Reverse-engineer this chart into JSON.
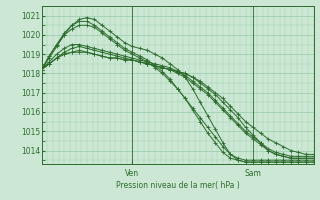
{
  "bg_color": "#cce8d4",
  "grid_color": "#99ccaa",
  "line_color": "#2d6b2d",
  "text_color": "#2d6b2d",
  "xlabel_text": "Pression niveau de la mer( hPa )",
  "ylim": [
    1013.3,
    1021.5
  ],
  "yticks": [
    1014,
    1015,
    1016,
    1017,
    1018,
    1019,
    1020,
    1021
  ],
  "n_points": 37,
  "ven_idx": 12,
  "sam_idx": 28,
  "series": [
    [
      1018.2,
      1018.5,
      1018.8,
      1019.0,
      1019.1,
      1019.2,
      1019.1,
      1019.0,
      1018.9,
      1018.8,
      1018.8,
      1018.7,
      1018.7,
      1018.6,
      1018.5,
      1018.4,
      1018.3,
      1018.2,
      1018.1,
      1018.0,
      1017.8,
      1017.5,
      1017.2,
      1016.9,
      1016.5,
      1016.1,
      1015.7,
      1015.2,
      1014.8,
      1014.4,
      1014.0,
      1013.8,
      1013.7,
      1013.6,
      1013.6,
      1013.6,
      1013.6
    ],
    [
      1018.2,
      1018.5,
      1018.8,
      1019.0,
      1019.1,
      1019.1,
      1019.1,
      1019.0,
      1018.9,
      1018.8,
      1018.8,
      1018.7,
      1018.7,
      1018.6,
      1018.5,
      1018.4,
      1018.3,
      1018.2,
      1018.1,
      1018.0,
      1017.8,
      1017.6,
      1017.3,
      1017.0,
      1016.7,
      1016.3,
      1015.9,
      1015.5,
      1015.2,
      1014.9,
      1014.6,
      1014.4,
      1014.2,
      1014.0,
      1013.9,
      1013.8,
      1013.8
    ],
    [
      1018.2,
      1018.5,
      1018.8,
      1019.1,
      1019.3,
      1019.4,
      1019.3,
      1019.2,
      1019.1,
      1019.0,
      1018.9,
      1018.8,
      1018.7,
      1018.6,
      1018.5,
      1018.4,
      1018.3,
      1018.2,
      1018.0,
      1017.8,
      1017.5,
      1017.2,
      1016.9,
      1016.5,
      1016.1,
      1015.7,
      1015.3,
      1014.9,
      1014.6,
      1014.3,
      1014.0,
      1013.8,
      1013.7,
      1013.6,
      1013.6,
      1013.6,
      1013.6
    ],
    [
      1018.2,
      1018.6,
      1019.0,
      1019.3,
      1019.5,
      1019.5,
      1019.4,
      1019.3,
      1019.2,
      1019.1,
      1019.0,
      1018.9,
      1018.8,
      1018.7,
      1018.6,
      1018.5,
      1018.4,
      1018.3,
      1018.1,
      1017.9,
      1017.6,
      1017.3,
      1017.0,
      1016.6,
      1016.2,
      1015.8,
      1015.4,
      1015.0,
      1014.7,
      1014.4,
      1014.1,
      1013.9,
      1013.8,
      1013.7,
      1013.7,
      1013.7,
      1013.7
    ],
    [
      1018.2,
      1018.9,
      1019.5,
      1020.0,
      1020.3,
      1020.5,
      1020.5,
      1020.4,
      1020.1,
      1019.8,
      1019.5,
      1019.2,
      1019.0,
      1018.8,
      1018.6,
      1018.3,
      1018.0,
      1017.6,
      1017.2,
      1016.7,
      1016.2,
      1015.7,
      1015.2,
      1014.7,
      1014.2,
      1013.8,
      1013.6,
      1013.5,
      1013.5,
      1013.5,
      1013.5,
      1013.5,
      1013.5,
      1013.5,
      1013.5,
      1013.5,
      1013.5
    ],
    [
      1018.2,
      1018.9,
      1019.5,
      1020.1,
      1020.5,
      1020.7,
      1020.7,
      1020.5,
      1020.2,
      1019.9,
      1019.6,
      1019.3,
      1019.1,
      1018.9,
      1018.7,
      1018.4,
      1018.1,
      1017.7,
      1017.2,
      1016.7,
      1016.1,
      1015.5,
      1014.9,
      1014.4,
      1013.9,
      1013.6,
      1013.5,
      1013.4,
      1013.4,
      1013.4,
      1013.4,
      1013.4,
      1013.4,
      1013.4,
      1013.4,
      1013.4,
      1013.4
    ],
    [
      1018.2,
      1018.8,
      1019.4,
      1020.0,
      1020.5,
      1020.8,
      1020.9,
      1020.8,
      1020.5,
      1020.2,
      1019.9,
      1019.6,
      1019.4,
      1019.3,
      1019.2,
      1019.0,
      1018.8,
      1018.5,
      1018.2,
      1017.8,
      1017.2,
      1016.5,
      1015.8,
      1015.1,
      1014.4,
      1013.8,
      1013.5,
      1013.4,
      1013.4,
      1013.4,
      1013.4,
      1013.4,
      1013.4,
      1013.4,
      1013.4,
      1013.4,
      1013.4
    ]
  ]
}
